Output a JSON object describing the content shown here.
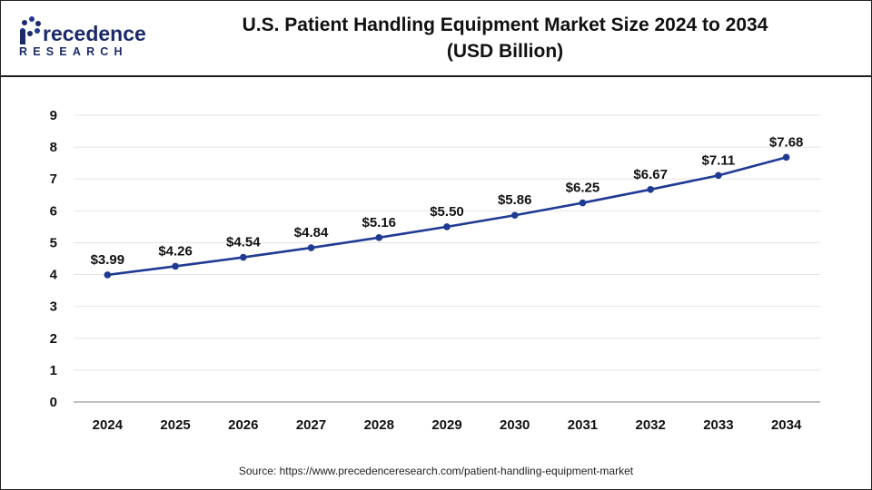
{
  "brand": {
    "name_main": "recedence",
    "name_sub": "RESEARCH",
    "colors": {
      "navy": "#1b2a6b",
      "blue": "#1f3a93"
    }
  },
  "header": {
    "title_line1": "U.S. Patient Handling Equipment Market Size 2024 to 2034",
    "title_line2": "(USD Billion)"
  },
  "source": "Source: https://www.precedenceresearch.com/patient-handling-equipment-market",
  "chart_data": {
    "type": "line",
    "title": "U.S. Patient Handling Equipment Market Size 2024 to 2034 (USD Billion)",
    "xlabel": "",
    "ylabel": "",
    "x": [
      "2024",
      "2025",
      "2026",
      "2027",
      "2028",
      "2029",
      "2030",
      "2031",
      "2032",
      "2033",
      "2034"
    ],
    "values": [
      3.99,
      4.26,
      4.54,
      4.84,
      5.16,
      5.5,
      5.86,
      6.25,
      6.67,
      7.11,
      7.68
    ],
    "labels": [
      "$3.99",
      "$4.26",
      "$4.54",
      "$4.84",
      "$5.16",
      "$5.50",
      "$5.86",
      "$6.25",
      "$6.67",
      "$7.11",
      "$7.68"
    ],
    "ylim": [
      0,
      9
    ],
    "yticks": [
      0,
      1,
      2,
      3,
      4,
      5,
      6,
      7,
      8,
      9
    ],
    "grid": true,
    "legend": "none",
    "line_color": "#1f3a93"
  }
}
